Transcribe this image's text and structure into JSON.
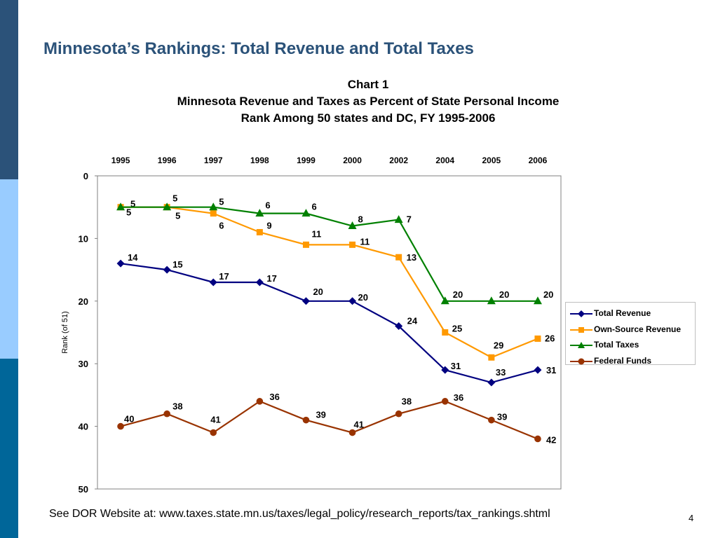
{
  "slide": {
    "title": "Minnesota’s Rankings:  Total Revenue and Total Taxes",
    "footer": "See DOR Website at: www.taxes.state.mn.us/taxes/legal_policy/research_reports/tax_rankings.shtml",
    "page_number": "4"
  },
  "colors": {
    "stripe_dark": "#2b5279",
    "stripe_light": "#99ccff",
    "stripe_mid": "#006699",
    "title": "#2b5279"
  },
  "chart_data": {
    "type": "line",
    "title_lines": [
      "Chart 1",
      "Minnesota Revenue and Taxes as Percent of State Personal Income",
      "Rank Among 50 states and DC, FY 1995-2006"
    ],
    "ylabel": "Rank (of 51)",
    "xlabel": "",
    "categories": [
      "1995",
      "1996",
      "1997",
      "1998",
      "1999",
      "2000",
      "2002",
      "2004",
      "2005",
      "2006"
    ],
    "x_axis_position": "top",
    "y_reversed": true,
    "ylim": [
      0,
      50
    ],
    "yticks": [
      0,
      10,
      20,
      30,
      40,
      50
    ],
    "grid": false,
    "legend_position": "right",
    "series": [
      {
        "name": "Total Revenue",
        "color": "#000080",
        "marker": "diamond",
        "values": [
          14,
          15,
          17,
          17,
          20,
          20,
          24,
          31,
          33,
          31
        ]
      },
      {
        "name": "Own-Source Revenue",
        "color": "#ff9900",
        "marker": "square",
        "values": [
          5,
          5,
          6,
          9,
          11,
          11,
          13,
          25,
          29,
          26
        ]
      },
      {
        "name": "Total Taxes",
        "color": "#008000",
        "marker": "triangle",
        "values": [
          5,
          5,
          5,
          6,
          6,
          8,
          7,
          20,
          20,
          20
        ]
      },
      {
        "name": "Federal Funds",
        "color": "#993300",
        "marker": "circle",
        "values": [
          40,
          38,
          41,
          36,
          39,
          41,
          38,
          36,
          39,
          42
        ]
      }
    ]
  }
}
